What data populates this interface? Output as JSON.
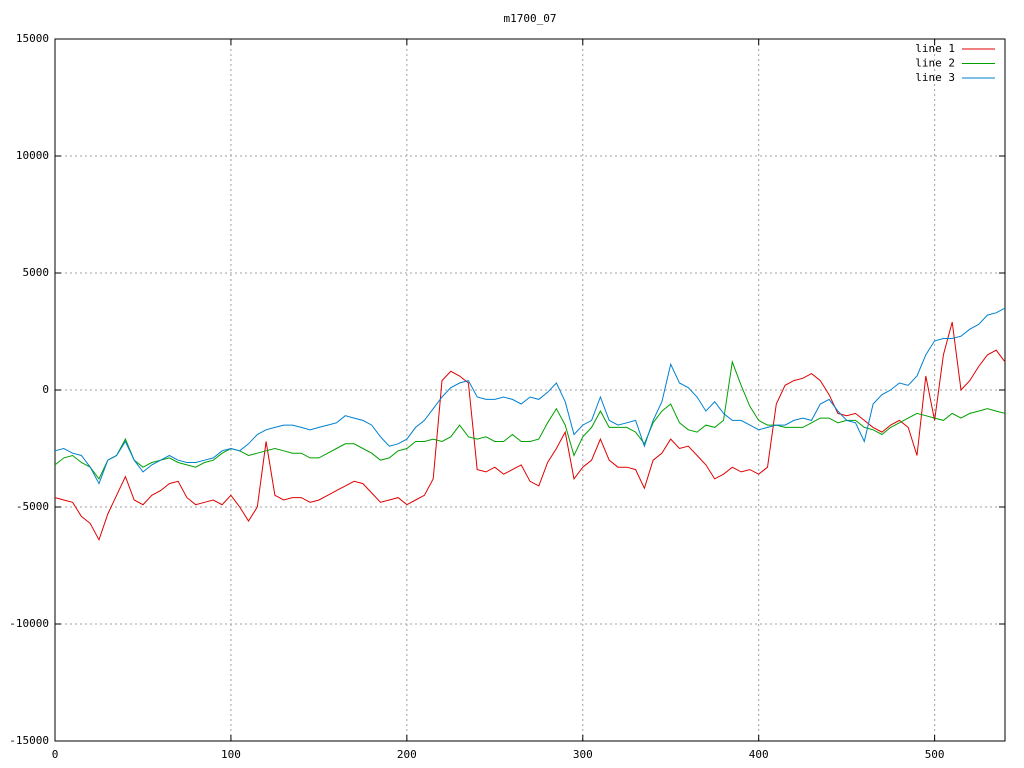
{
  "chart_data": {
    "type": "line",
    "title": "m1700_07",
    "x": [
      0,
      5,
      10,
      15,
      20,
      25,
      30,
      35,
      40,
      45,
      50,
      55,
      60,
      65,
      70,
      75,
      80,
      85,
      90,
      95,
      100,
      105,
      110,
      115,
      120,
      125,
      130,
      135,
      140,
      145,
      150,
      155,
      160,
      165,
      170,
      175,
      180,
      185,
      190,
      195,
      200,
      205,
      210,
      215,
      220,
      225,
      230,
      235,
      240,
      245,
      250,
      255,
      260,
      265,
      270,
      275,
      280,
      285,
      290,
      295,
      300,
      305,
      310,
      315,
      320,
      325,
      330,
      335,
      340,
      345,
      350,
      355,
      360,
      365,
      370,
      375,
      380,
      385,
      390,
      395,
      400,
      405,
      410,
      415,
      420,
      425,
      430,
      435,
      440,
      445,
      450,
      455,
      460,
      465,
      470,
      475,
      480,
      485,
      490,
      495,
      500,
      505,
      510,
      515,
      520,
      525,
      530,
      535,
      540
    ],
    "series": [
      {
        "name": "line 1",
        "color": "#e00000",
        "values": [
          -4600,
          -4700,
          -4800,
          -5400,
          -5700,
          -6400,
          -5300,
          -4500,
          -3700,
          -4700,
          -4900,
          -4500,
          -4300,
          -4000,
          -3900,
          -4600,
          -4900,
          -4800,
          -4700,
          -4900,
          -4500,
          -5000,
          -5600,
          -5000,
          -2200,
          -4500,
          -4700,
          -4600,
          -4600,
          -4800,
          -4700,
          -4500,
          -4300,
          -4100,
          -3900,
          -4000,
          -4400,
          -4800,
          -4700,
          -4600,
          -4900,
          -4700,
          -4500,
          -3800,
          400,
          800,
          600,
          300,
          -3400,
          -3500,
          -3300,
          -3600,
          -3400,
          -3200,
          -3900,
          -4100,
          -3100,
          -2500,
          -1800,
          -3800,
          -3300,
          -3000,
          -2100,
          -3000,
          -3300,
          -3300,
          -3400,
          -4200,
          -3000,
          -2700,
          -2100,
          -2500,
          -2400,
          -2800,
          -3200,
          -3800,
          -3600,
          -3300,
          -3500,
          -3400,
          -3600,
          -3300,
          -600,
          200,
          400,
          500,
          700,
          400,
          -200,
          -1000,
          -1100,
          -1000,
          -1300,
          -1600,
          -1800,
          -1500,
          -1300,
          -1600,
          -2800,
          600,
          -1300,
          1500,
          2900,
          0,
          400,
          1000,
          1500,
          1700,
          1200
        ]
      },
      {
        "name": "line 2",
        "color": "#00a000",
        "values": [
          -3200,
          -2900,
          -2800,
          -3100,
          -3300,
          -3800,
          -3000,
          -2800,
          -2100,
          -3000,
          -3300,
          -3100,
          -3000,
          -2900,
          -3100,
          -3200,
          -3300,
          -3100,
          -3000,
          -2700,
          -2500,
          -2600,
          -2800,
          -2700,
          -2600,
          -2500,
          -2600,
          -2700,
          -2700,
          -2900,
          -2900,
          -2700,
          -2500,
          -2300,
          -2300,
          -2500,
          -2700,
          -3000,
          -2900,
          -2600,
          -2500,
          -2200,
          -2200,
          -2100,
          -2200,
          -2000,
          -1500,
          -2000,
          -2100,
          -2000,
          -2200,
          -2200,
          -1900,
          -2200,
          -2200,
          -2100,
          -1400,
          -800,
          -1500,
          -2800,
          -2000,
          -1600,
          -900,
          -1600,
          -1600,
          -1600,
          -1800,
          -2300,
          -1400,
          -900,
          -600,
          -1400,
          -1700,
          -1800,
          -1500,
          -1600,
          -1300,
          1200,
          200,
          -700,
          -1300,
          -1500,
          -1500,
          -1600,
          -1600,
          -1600,
          -1400,
          -1200,
          -1200,
          -1400,
          -1300,
          -1300,
          -1600,
          -1700,
          -1900,
          -1600,
          -1400,
          -1200,
          -1000,
          -1100,
          -1200,
          -1300,
          -1000,
          -1200,
          -1000,
          -900,
          -800,
          -900,
          -1000
        ]
      },
      {
        "name": "line 3",
        "color": "#0080d0",
        "values": [
          -2600,
          -2500,
          -2700,
          -2800,
          -3300,
          -4000,
          -3000,
          -2800,
          -2200,
          -3000,
          -3500,
          -3200,
          -3000,
          -2800,
          -3000,
          -3100,
          -3100,
          -3000,
          -2900,
          -2600,
          -2500,
          -2600,
          -2300,
          -1900,
          -1700,
          -1600,
          -1500,
          -1500,
          -1600,
          -1700,
          -1600,
          -1500,
          -1400,
          -1100,
          -1200,
          -1300,
          -1500,
          -2000,
          -2400,
          -2300,
          -2100,
          -1600,
          -1300,
          -800,
          -300,
          100,
          300,
          400,
          -300,
          -400,
          -400,
          -300,
          -400,
          -600,
          -300,
          -400,
          -100,
          300,
          -500,
          -1900,
          -1500,
          -1300,
          -300,
          -1300,
          -1500,
          -1400,
          -1300,
          -2400,
          -1300,
          -500,
          1100,
          300,
          100,
          -300,
          -900,
          -500,
          -1000,
          -1300,
          -1300,
          -1500,
          -1700,
          -1600,
          -1500,
          -1500,
          -1300,
          -1200,
          -1300,
          -600,
          -400,
          -900,
          -1300,
          -1400,
          -2200,
          -600,
          -200,
          0,
          300,
          200,
          600,
          1500,
          2100,
          2200,
          2200,
          2300,
          2600,
          2800,
          3200,
          3300,
          3500
        ]
      }
    ],
    "xlim": [
      0,
      540
    ],
    "xticks": [
      0,
      100,
      200,
      300,
      400,
      500
    ],
    "ylim": [
      -15000,
      15000
    ],
    "yticks": [
      -15000,
      -10000,
      -5000,
      0,
      5000,
      10000,
      15000
    ],
    "grid": true,
    "legend": "top-right"
  }
}
